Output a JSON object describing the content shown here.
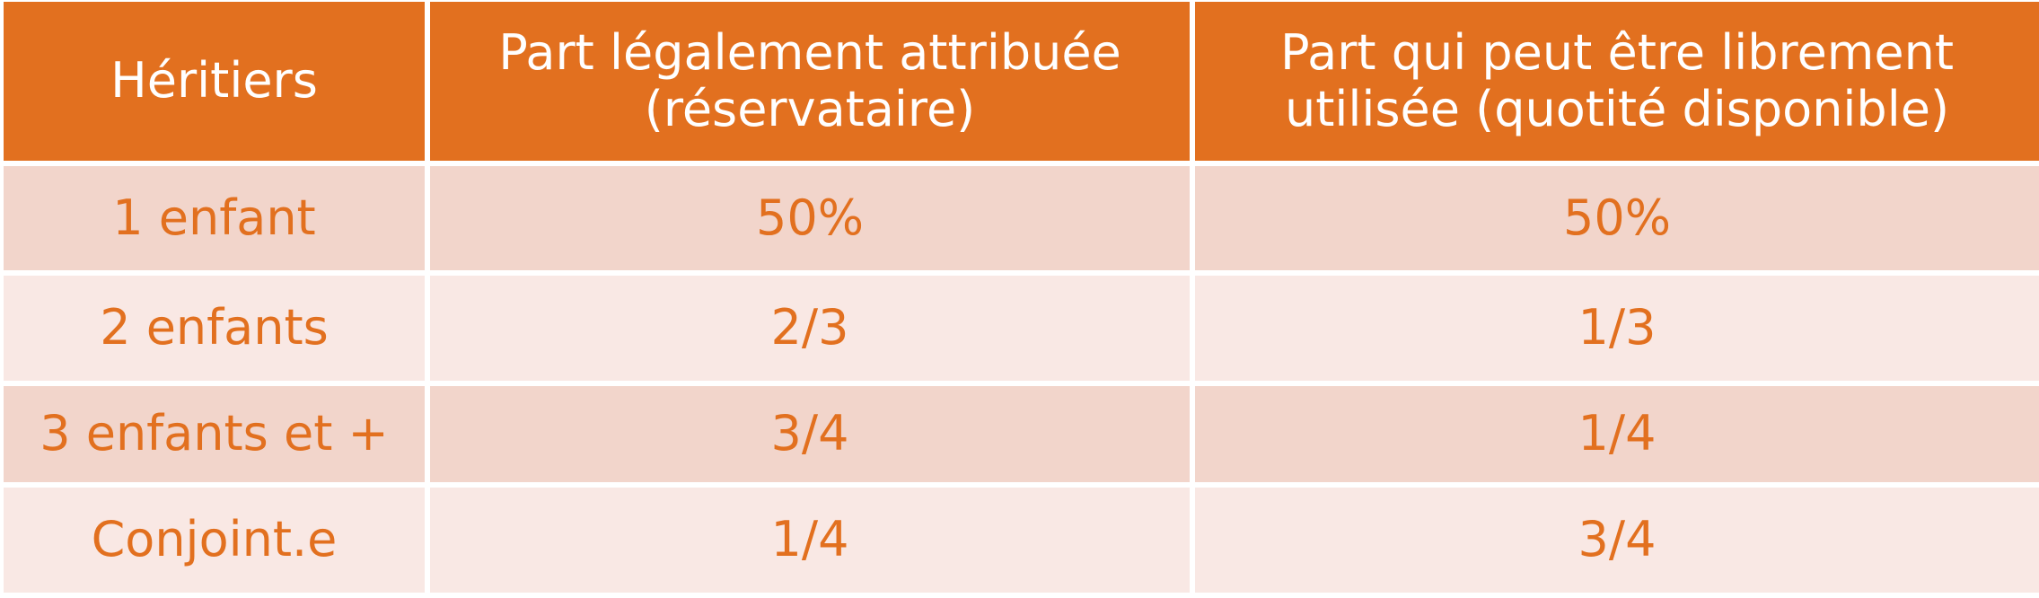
{
  "table": {
    "header": [
      "Héritiers",
      "Part légalement attribuée (réservataire)",
      "Part qui peut être librement utilisée (quotité disponible)"
    ],
    "rows": [
      [
        "1 enfant",
        "50%",
        "50%"
      ],
      [
        "2 enfants",
        "2/3",
        "1/3"
      ],
      [
        "3 enfants et +",
        "3/4",
        "1/4"
      ],
      [
        "Conjoint.e",
        "1/4",
        "3/4"
      ]
    ]
  }
}
